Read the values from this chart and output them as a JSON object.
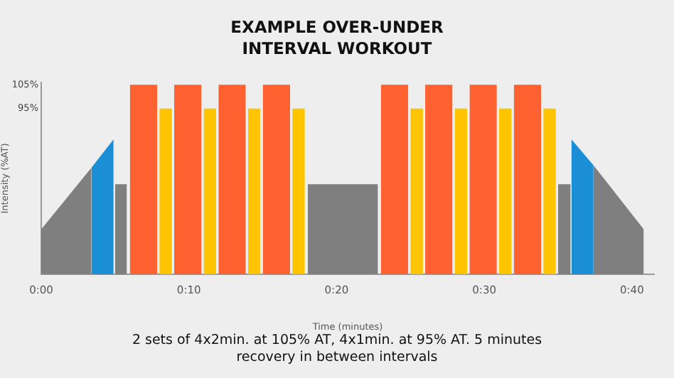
{
  "chart_data": {
    "type": "area",
    "title": "EXAMPLE OVER-UNDER INTERVAL WORKOUT",
    "xlabel": "Time (minutes)",
    "ylabel": "Intensity (%AT)",
    "annotations": [
      "2 sets of 4x2min. at 105% AT, 4x1min. at 95% AT. 5 minutes recovery in between intervals"
    ],
    "xlim": [
      0,
      41.5
    ],
    "xticks": [
      {
        "value": 0,
        "label": "0:00"
      },
      {
        "value": 10,
        "label": "0:10"
      },
      {
        "value": 20,
        "label": "0:20"
      },
      {
        "value": 30,
        "label": "0:30"
      },
      {
        "value": 40,
        "label": "0:40"
      }
    ],
    "ylim": [
      25,
      106
    ],
    "yticks": [
      {
        "value": 95,
        "label": "95%"
      },
      {
        "value": 105,
        "label": "105%"
      }
    ],
    "grid": false,
    "legend": false,
    "series": [
      {
        "color": "#7f7f7f",
        "x": [
          0,
          3.4
        ],
        "values": [
          44,
          70
        ]
      },
      {
        "color": "#1a8fd6",
        "x": [
          3.4,
          4.9
        ],
        "values": [
          70,
          82
        ]
      },
      {
        "color": "#7f7f7f",
        "x": [
          5.0,
          5.8
        ],
        "values": [
          63,
          63
        ]
      },
      {
        "color": "#ff6230",
        "x": [
          6.0,
          7.85
        ],
        "values": [
          105,
          105
        ]
      },
      {
        "color": "#ffc400",
        "x": [
          8.0,
          8.85
        ],
        "values": [
          95,
          95
        ]
      },
      {
        "color": "#ff6230",
        "x": [
          9.0,
          10.85
        ],
        "values": [
          105,
          105
        ]
      },
      {
        "color": "#ffc400",
        "x": [
          11.0,
          11.85
        ],
        "values": [
          95,
          95
        ]
      },
      {
        "color": "#ff6230",
        "x": [
          12.0,
          13.85
        ],
        "values": [
          105,
          105
        ]
      },
      {
        "color": "#ffc400",
        "x": [
          14.0,
          14.85
        ],
        "values": [
          95,
          95
        ]
      },
      {
        "color": "#ff6230",
        "x": [
          15.0,
          16.85
        ],
        "values": [
          105,
          105
        ]
      },
      {
        "color": "#ffc400",
        "x": [
          17.0,
          17.85
        ],
        "values": [
          95,
          95
        ]
      },
      {
        "color": "#7f7f7f",
        "x": [
          18.05,
          22.8
        ],
        "values": [
          63,
          63
        ]
      },
      {
        "color": "#ff6230",
        "x": [
          23.0,
          24.85
        ],
        "values": [
          105,
          105
        ]
      },
      {
        "color": "#ffc400",
        "x": [
          25.0,
          25.85
        ],
        "values": [
          95,
          95
        ]
      },
      {
        "color": "#ff6230",
        "x": [
          26.0,
          27.85
        ],
        "values": [
          105,
          105
        ]
      },
      {
        "color": "#ffc400",
        "x": [
          28.0,
          28.85
        ],
        "values": [
          95,
          95
        ]
      },
      {
        "color": "#ff6230",
        "x": [
          29.0,
          30.85
        ],
        "values": [
          105,
          105
        ]
      },
      {
        "color": "#ffc400",
        "x": [
          31.0,
          31.85
        ],
        "values": [
          95,
          95
        ]
      },
      {
        "color": "#ff6230",
        "x": [
          32.0,
          33.85
        ],
        "values": [
          105,
          105
        ]
      },
      {
        "color": "#ffc400",
        "x": [
          34.0,
          34.85
        ],
        "values": [
          95,
          95
        ]
      },
      {
        "color": "#7f7f7f",
        "x": [
          35.0,
          35.85
        ],
        "values": [
          63,
          63
        ]
      },
      {
        "color": "#1a8fd6",
        "x": [
          35.9,
          37.4
        ],
        "values": [
          82,
          71
        ]
      },
      {
        "color": "#7f7f7f",
        "x": [
          37.4,
          40.8
        ],
        "values": [
          71,
          44
        ]
      }
    ]
  }
}
